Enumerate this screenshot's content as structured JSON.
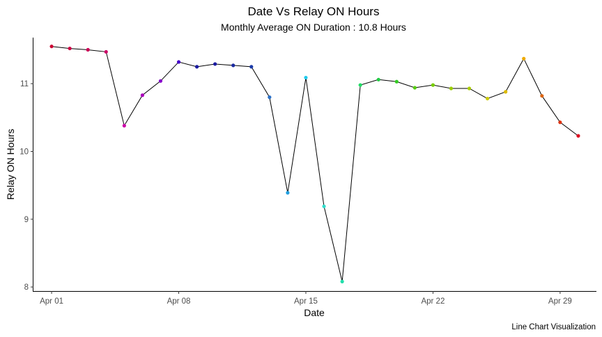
{
  "chart_data": {
    "type": "line",
    "title": "Date Vs Relay ON Hours",
    "subtitle": "Monthly Average ON Duration : 10.8 Hours",
    "xlabel": "Date",
    "ylabel": "Relay ON Hours",
    "caption": "Line Chart Visualization",
    "x_ticks": [
      {
        "day": 1,
        "label": "Apr 01"
      },
      {
        "day": 8,
        "label": "Apr 08"
      },
      {
        "day": 15,
        "label": "Apr 15"
      },
      {
        "day": 22,
        "label": "Apr 22"
      },
      {
        "day": 29,
        "label": "Apr 29"
      }
    ],
    "y_ticks": [
      8,
      9,
      10,
      11
    ],
    "xlim": [
      "2021-03-31",
      "2021-05-01"
    ],
    "ylim": [
      7.94,
      11.68
    ],
    "grid": false,
    "legend": "none",
    "line_color": "#000000",
    "points": [
      {
        "x": "2021-04-01",
        "y": 11.55,
        "color": "#cc0033"
      },
      {
        "x": "2021-04-02",
        "y": 11.52,
        "color": "#cc0044"
      },
      {
        "x": "2021-04-03",
        "y": 11.5,
        "color": "#cc0055"
      },
      {
        "x": "2021-04-04",
        "y": 11.47,
        "color": "#cc0066"
      },
      {
        "x": "2021-04-05",
        "y": 10.38,
        "color": "#cc00aa"
      },
      {
        "x": "2021-04-06",
        "y": 10.83,
        "color": "#aa00bb"
      },
      {
        "x": "2021-04-07",
        "y": 11.04,
        "color": "#8800cc"
      },
      {
        "x": "2021-04-08",
        "y": 11.32,
        "color": "#4400cc"
      },
      {
        "x": "2021-04-09",
        "y": 11.25,
        "color": "#1a1aa0"
      },
      {
        "x": "2021-04-10",
        "y": 11.29,
        "color": "#1a1aa0"
      },
      {
        "x": "2021-04-11",
        "y": 11.27,
        "color": "#1a2aa0"
      },
      {
        "x": "2021-04-12",
        "y": 11.25,
        "color": "#1a3aa8"
      },
      {
        "x": "2021-04-13",
        "y": 10.8,
        "color": "#2a70c8"
      },
      {
        "x": "2021-04-14",
        "y": 9.39,
        "color": "#22a0e0"
      },
      {
        "x": "2021-04-15",
        "y": 11.09,
        "color": "#22ccee"
      },
      {
        "x": "2021-04-16",
        "y": 9.19,
        "color": "#33ddcc"
      },
      {
        "x": "2021-04-17",
        "y": 8.08,
        "color": "#22ddaa"
      },
      {
        "x": "2021-04-18",
        "y": 10.98,
        "color": "#22dd66"
      },
      {
        "x": "2021-04-19",
        "y": 11.06,
        "color": "#22cc44"
      },
      {
        "x": "2021-04-20",
        "y": 11.03,
        "color": "#33cc22"
      },
      {
        "x": "2021-04-21",
        "y": 10.94,
        "color": "#55cc11"
      },
      {
        "x": "2021-04-22",
        "y": 10.98,
        "color": "#77cc00"
      },
      {
        "x": "2021-04-23",
        "y": 10.93,
        "color": "#99cc00"
      },
      {
        "x": "2021-04-24",
        "y": 10.93,
        "color": "#aacc00"
      },
      {
        "x": "2021-04-25",
        "y": 10.78,
        "color": "#cccc00"
      },
      {
        "x": "2021-04-26",
        "y": 10.88,
        "color": "#ddbb00"
      },
      {
        "x": "2021-04-27",
        "y": 11.37,
        "color": "#eeaa00"
      },
      {
        "x": "2021-04-28",
        "y": 10.82,
        "color": "#dd6611"
      },
      {
        "x": "2021-04-29",
        "y": 10.43,
        "color": "#dd3311"
      },
      {
        "x": "2021-04-30",
        "y": 10.23,
        "color": "#dd1122"
      }
    ]
  }
}
